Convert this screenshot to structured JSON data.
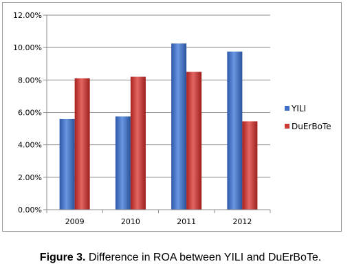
{
  "chart_data": {
    "type": "bar",
    "categories": [
      "2009",
      "2010",
      "2011",
      "2012"
    ],
    "series": [
      {
        "name": "YILI",
        "values": [
          5.6,
          5.75,
          10.25,
          9.75
        ],
        "color": "#3f6fc6"
      },
      {
        "name": "DuErBoTe",
        "values": [
          8.1,
          8.2,
          8.5,
          5.45
        ],
        "color": "#c93a36"
      }
    ],
    "y_ticks": [
      "0.00%",
      "2.00%",
      "4.00%",
      "6.00%",
      "8.00%",
      "10.00%",
      "12.00%"
    ],
    "ylim": [
      0,
      12
    ],
    "grid": true,
    "legend_position": "right"
  },
  "caption": {
    "label": "Figure 3.",
    "text": " Difference in ROA between YILI and DuErBoTe."
  }
}
